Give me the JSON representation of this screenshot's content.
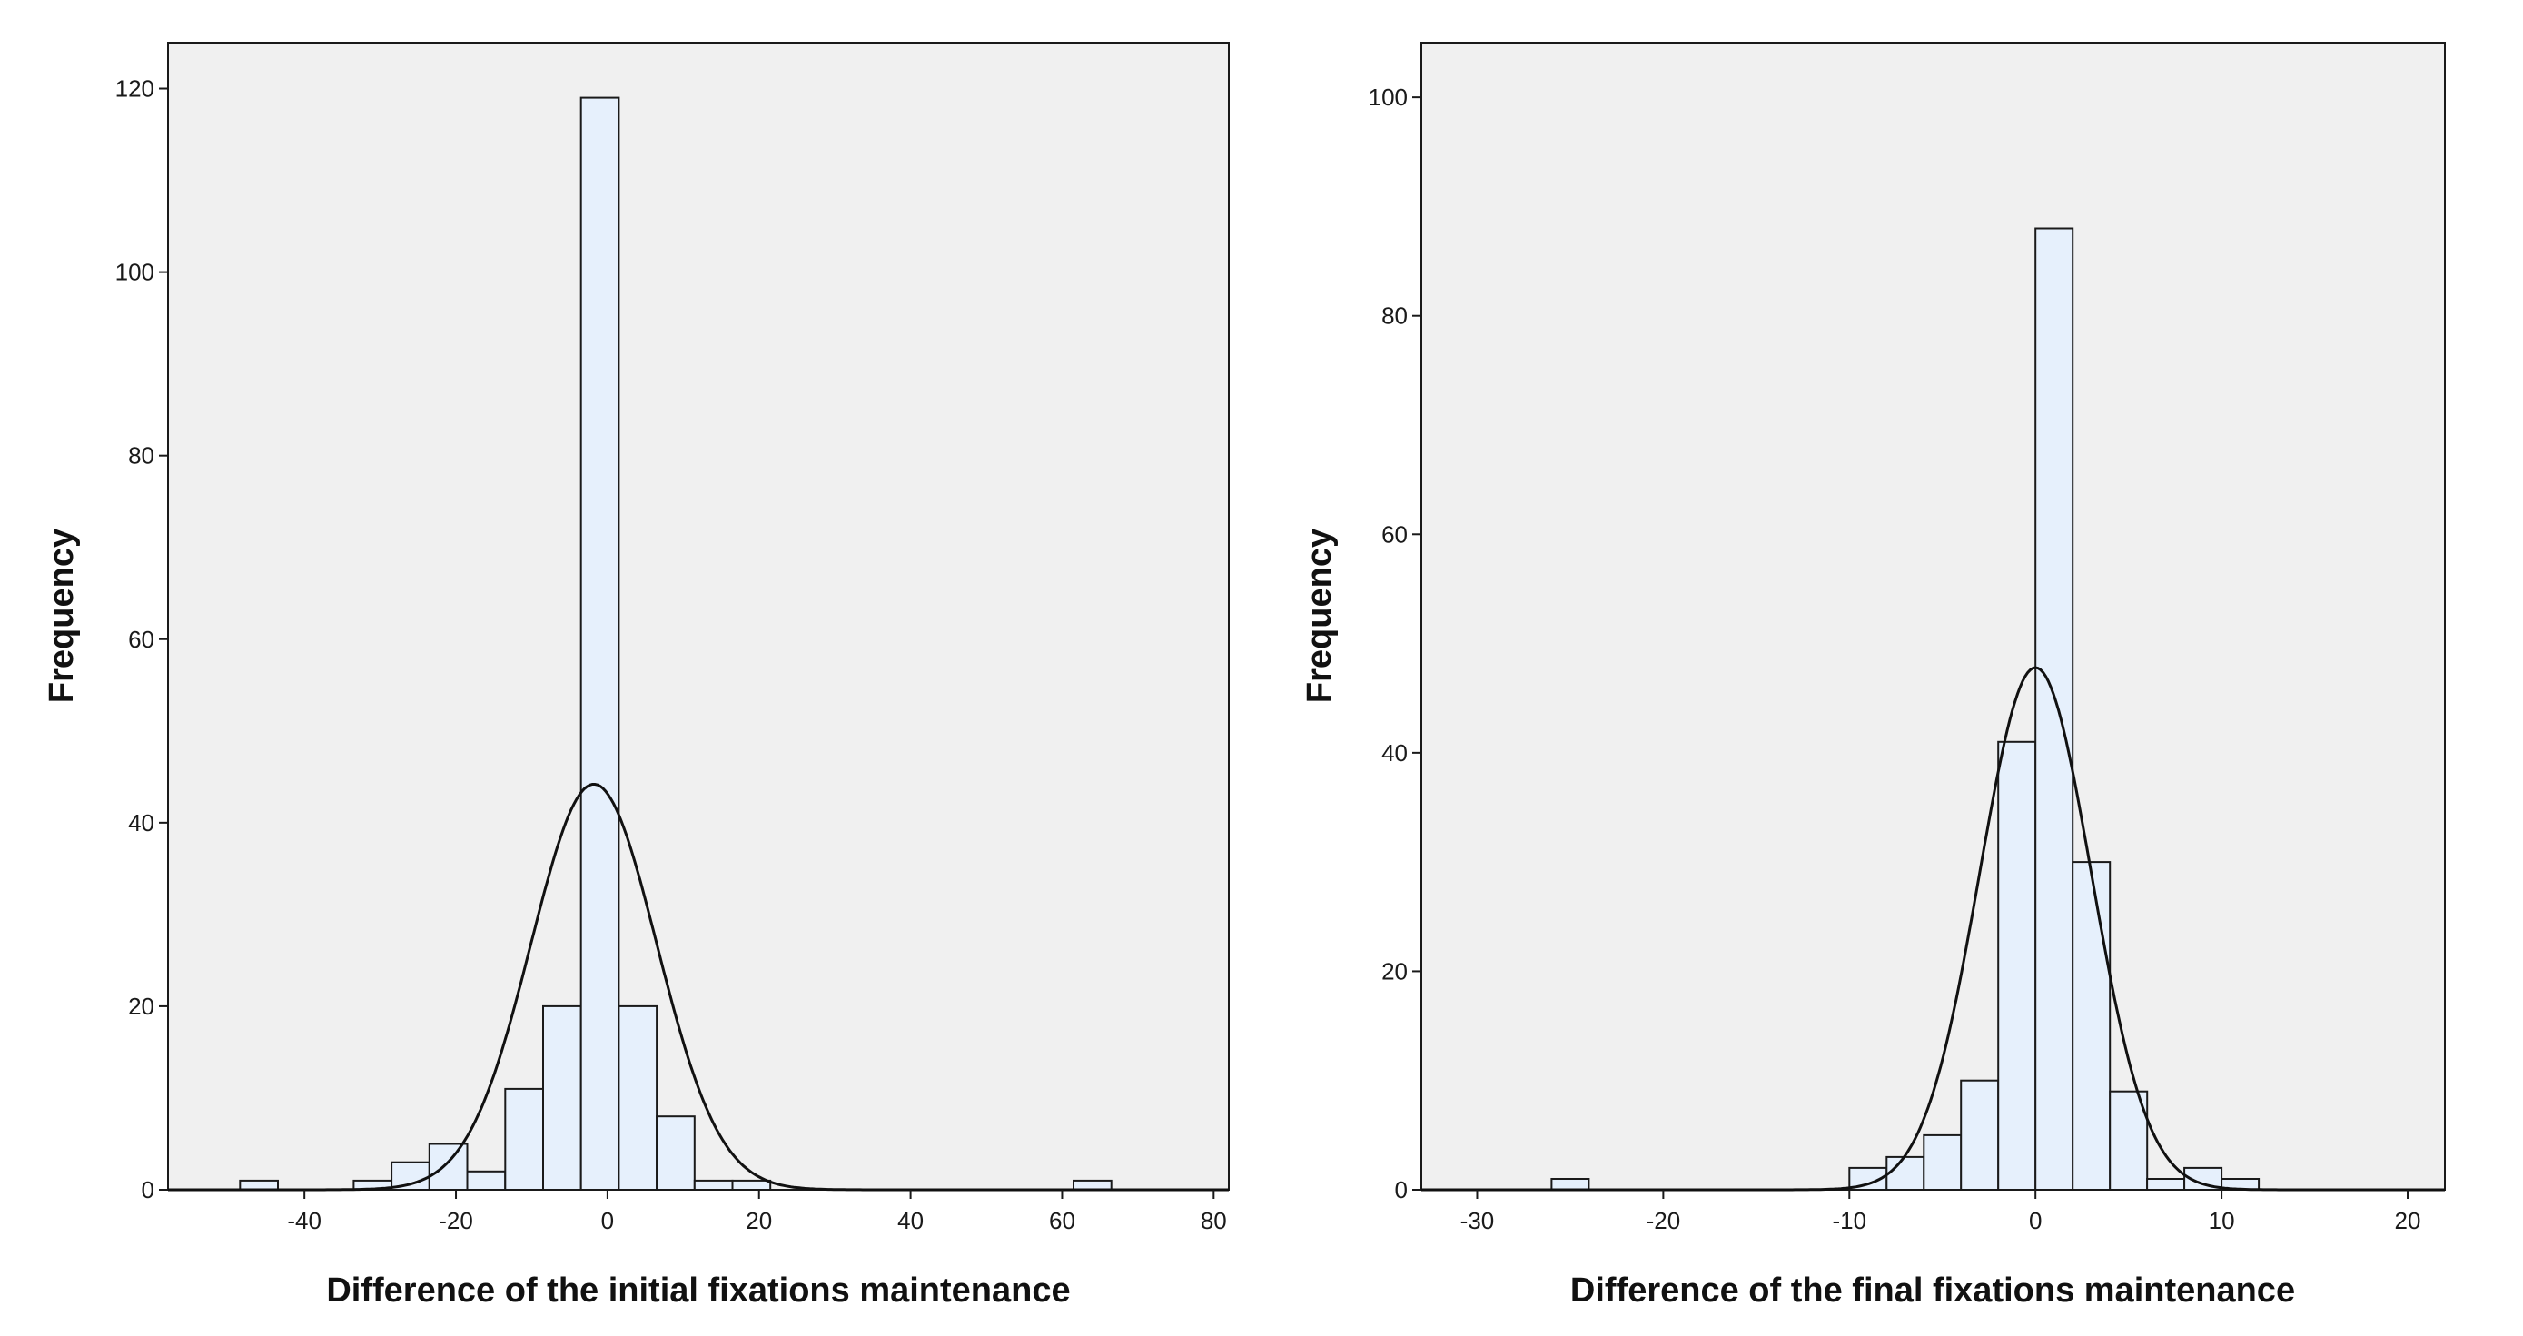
{
  "chart_data": [
    {
      "type": "bar",
      "subtype": "histogram",
      "xlabel": "Difference of the initial fixations maintenance",
      "ylabel": "Frequency",
      "xlim": [
        -58,
        82
      ],
      "ylim": [
        0,
        125
      ],
      "xticks": [
        -40,
        -20,
        0,
        20,
        40,
        60,
        80
      ],
      "yticks": [
        0,
        20,
        40,
        60,
        80,
        100,
        120
      ],
      "bin_width": 5,
      "bins": [
        {
          "x0": -48.5,
          "x1": -43.5,
          "count": 1
        },
        {
          "x0": -33.5,
          "x1": -28.5,
          "count": 1
        },
        {
          "x0": -28.5,
          "x1": -23.5,
          "count": 3
        },
        {
          "x0": -23.5,
          "x1": -18.5,
          "count": 5
        },
        {
          "x0": -18.5,
          "x1": -13.5,
          "count": 2
        },
        {
          "x0": -13.5,
          "x1": -8.5,
          "count": 11
        },
        {
          "x0": -8.5,
          "x1": -3.5,
          "count": 20
        },
        {
          "x0": -3.5,
          "x1": 1.5,
          "count": 119
        },
        {
          "x0": 1.5,
          "x1": 6.5,
          "count": 20
        },
        {
          "x0": 6.5,
          "x1": 11.5,
          "count": 8
        },
        {
          "x0": 11.5,
          "x1": 16.5,
          "count": 1
        },
        {
          "x0": 16.5,
          "x1": 21.5,
          "count": 1
        },
        {
          "x0": 61.5,
          "x1": 66.5,
          "count": 1
        }
      ],
      "normal_curve": {
        "mean": -1.8,
        "sd": 8.3,
        "peak": 44.2
      },
      "grid": false,
      "colors": {
        "bar_fill": "#e6f0fc",
        "bar_stroke": "#1a1a1a",
        "plot_background": "#f0f0f0",
        "curve": "#111111"
      }
    },
    {
      "type": "bar",
      "subtype": "histogram",
      "xlabel": "Difference of the final fixations maintenance",
      "ylabel": "Frequency",
      "xlim": [
        -33,
        22
      ],
      "ylim": [
        0,
        105
      ],
      "xticks": [
        -30,
        -20,
        -10,
        0,
        10,
        20
      ],
      "yticks": [
        0,
        20,
        40,
        60,
        80,
        100
      ],
      "bin_width": 2,
      "bins": [
        {
          "x0": -26,
          "x1": -24,
          "count": 1
        },
        {
          "x0": -10,
          "x1": -8,
          "count": 2
        },
        {
          "x0": -8,
          "x1": -6,
          "count": 3
        },
        {
          "x0": -6,
          "x1": -4,
          "count": 5
        },
        {
          "x0": -4,
          "x1": -2,
          "count": 10
        },
        {
          "x0": -2,
          "x1": 0,
          "count": 41
        },
        {
          "x0": 0,
          "x1": 2,
          "count": 88
        },
        {
          "x0": 2,
          "x1": 4,
          "count": 30
        },
        {
          "x0": 4,
          "x1": 6,
          "count": 9
        },
        {
          "x0": 6,
          "x1": 8,
          "count": 1
        },
        {
          "x0": 8,
          "x1": 10,
          "count": 2
        },
        {
          "x0": 10,
          "x1": 12,
          "count": 1
        }
      ],
      "normal_curve": {
        "mean": 0.0,
        "sd": 3.0,
        "peak": 47.8
      },
      "grid": false,
      "colors": {
        "bar_fill": "#e6f0fc",
        "bar_stroke": "#1a1a1a",
        "plot_background": "#f0f0f0",
        "curve": "#111111"
      }
    }
  ]
}
